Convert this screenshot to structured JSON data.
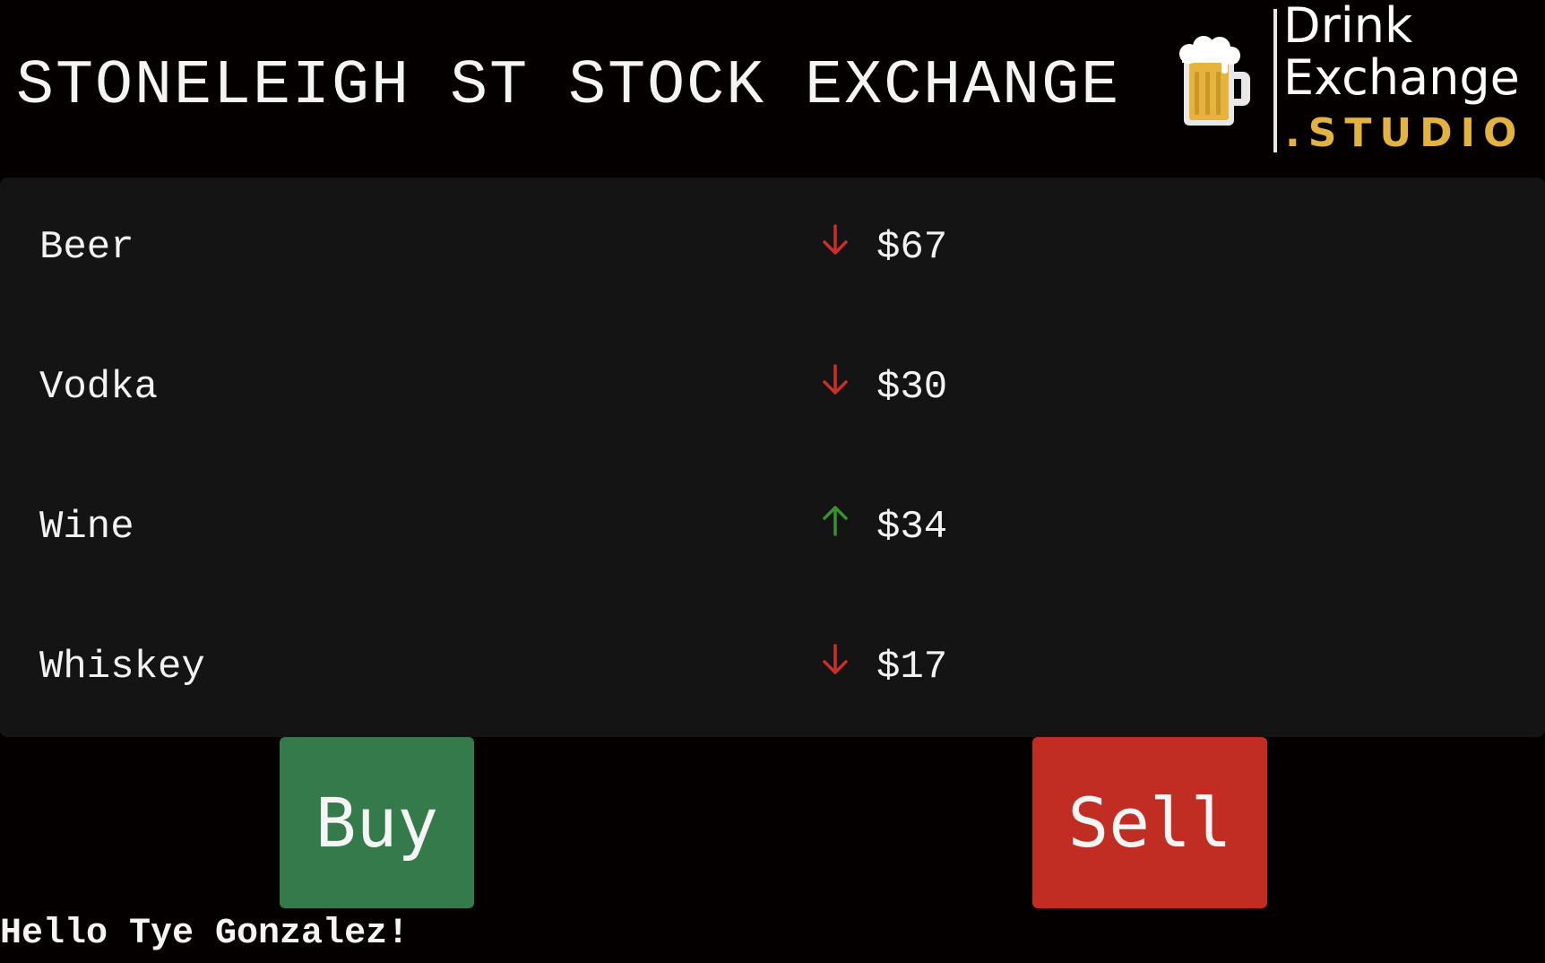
{
  "header": {
    "title": "STONELEIGH ST STOCK EXCHANGE"
  },
  "logo": {
    "icon": "beer-mug-icon",
    "line1": "Drink",
    "line2": "Exchange",
    "line3": ".STUDIO",
    "accent_color": "#e3b341"
  },
  "drinks": [
    {
      "name": "Beer",
      "trend": "down",
      "trend_icon": "arrow-down-icon",
      "price": "$67"
    },
    {
      "name": "Vodka",
      "trend": "down",
      "trend_icon": "arrow-down-icon",
      "price": "$30"
    },
    {
      "name": "Wine",
      "trend": "up",
      "trend_icon": "arrow-up-icon",
      "price": "$34"
    },
    {
      "name": "Whiskey",
      "trend": "down",
      "trend_icon": "arrow-down-icon",
      "price": "$17"
    }
  ],
  "colors": {
    "up": "#3a8f2e",
    "down": "#c9302a",
    "buy": "#357a4a",
    "sell": "#c12d22"
  },
  "actions": {
    "buy_label": "Buy",
    "sell_label": "Sell"
  },
  "footer": {
    "greeting": "Hello Tye Gonzalez!"
  }
}
